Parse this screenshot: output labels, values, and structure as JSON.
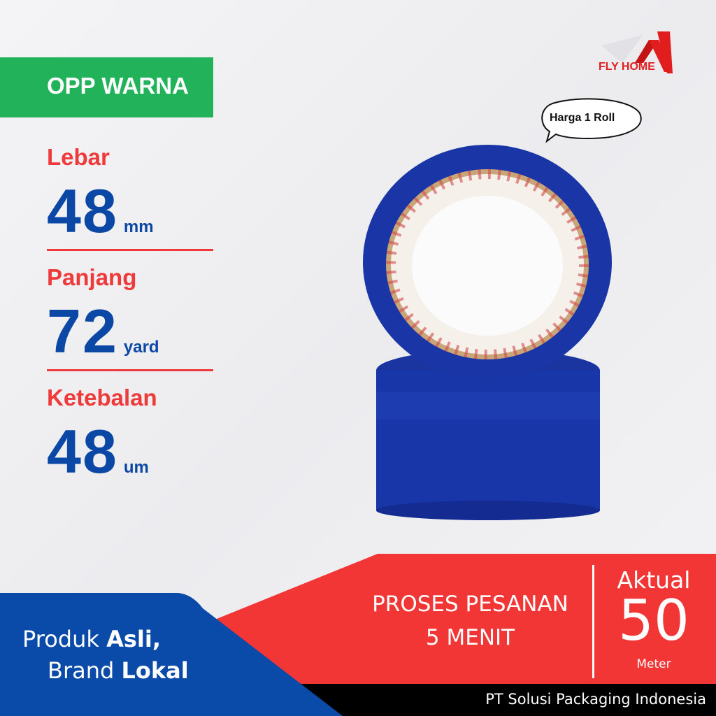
{
  "brand": {
    "logo_text": "FLY HOME",
    "logo_color": "#e11d1d"
  },
  "badge": {
    "label": "OPP WARNA",
    "color": "#22b259"
  },
  "specs": [
    {
      "label": "Lebar",
      "value": "48",
      "unit": "mm"
    },
    {
      "label": "Panjang",
      "value": "72",
      "unit": "yard"
    },
    {
      "label": "Ketebalan",
      "value": "48",
      "unit": "um"
    }
  ],
  "bubble": {
    "text": "Harga 1 Roll"
  },
  "banner": {
    "left_line1_regular": "Produk ",
    "left_line1_bold": "Asli,",
    "left_line2_regular": "Brand ",
    "left_line2_bold": "Lokal",
    "process_line1": "PROSES PESANAN",
    "process_line2": "5 MENIT",
    "actual_label": "Aktual",
    "actual_value": "50",
    "actual_unit": "Meter",
    "company": "PT Solusi Packaging Indonesia"
  },
  "colors": {
    "red": "#f23636",
    "blue": "#0a4aa8",
    "tape": "#1836a8",
    "black": "#000000"
  }
}
